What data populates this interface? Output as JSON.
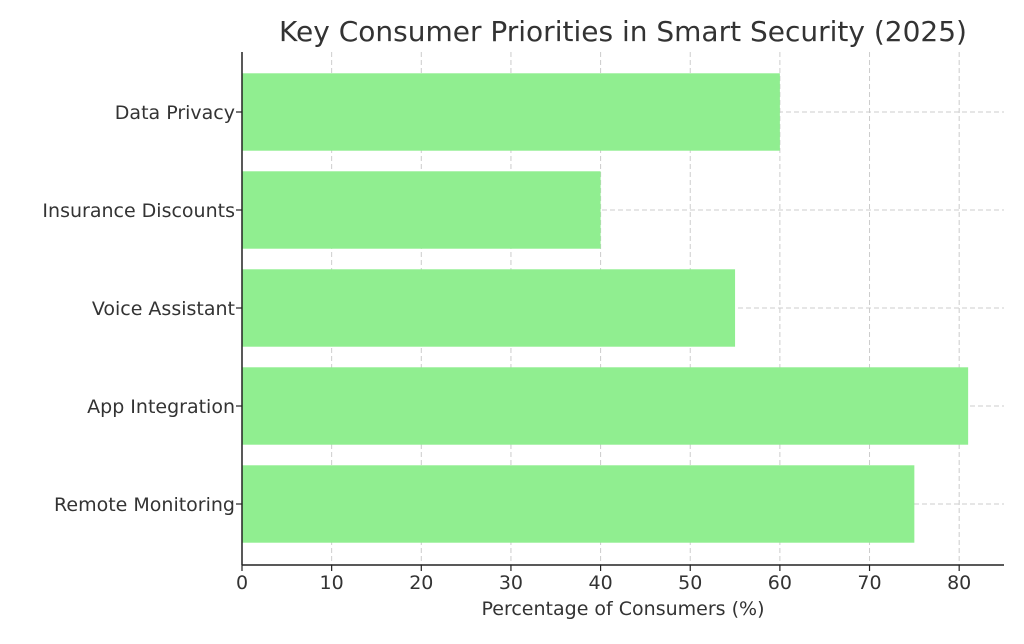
{
  "chart_data": {
    "type": "bar",
    "orientation": "horizontal",
    "title": "Key Consumer Priorities in Smart Security (2025)",
    "xlabel": "Percentage of Consumers (%)",
    "ylabel": "",
    "categories": [
      "Remote Monitoring",
      "App Integration",
      "Voice Assistant",
      "Insurance Discounts",
      "Data Privacy"
    ],
    "values": [
      75,
      81,
      55,
      40,
      60
    ],
    "xlim": [
      0,
      85
    ],
    "xticks": [
      0,
      10,
      20,
      30,
      40,
      50,
      60,
      70,
      80
    ],
    "grid": true,
    "bar_color": "#90EE90"
  }
}
